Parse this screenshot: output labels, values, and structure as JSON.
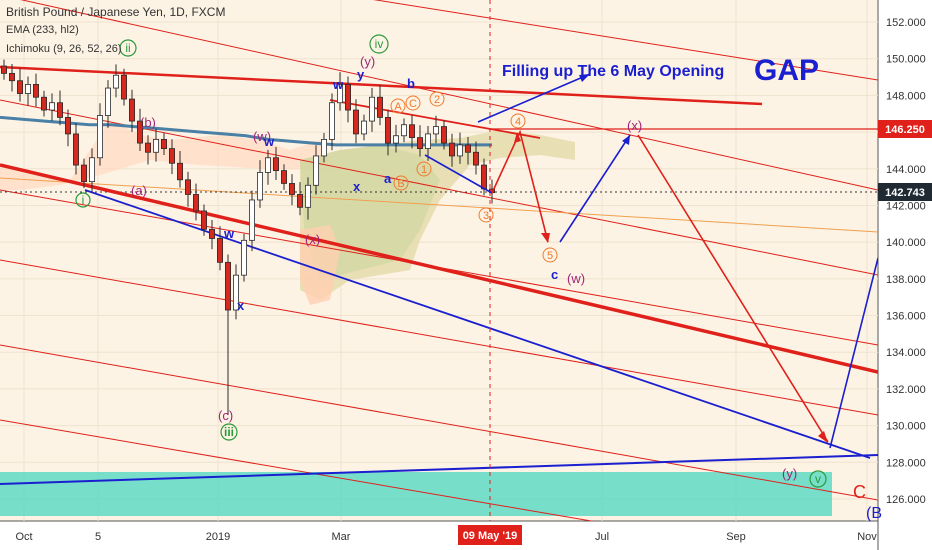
{
  "header": {
    "title": "British Pound / Japanese Yen, 1D, FXCM",
    "ema": "EMA (233, hl2)",
    "ichimoku": "Ichimoku (9, 26, 52, 26)"
  },
  "chart_data": {
    "type": "line",
    "symbol": "GBPJPY",
    "y_axis": {
      "ticks": [
        126.0,
        128.0,
        130.0,
        132.0,
        134.0,
        136.0,
        138.0,
        140.0,
        142.0,
        144.0,
        146.0,
        148.0,
        150.0,
        152.0
      ],
      "tick_labels": [
        "126.000",
        "128.000",
        "130.000",
        "132.000",
        "134.000",
        "136.000",
        "138.000",
        "140.000",
        "142.000",
        "144.000",
        "146.000",
        "148.000",
        "150.000",
        "152.000"
      ],
      "range": [
        124.8,
        153.2
      ],
      "price_tags": [
        {
          "label": "146.250",
          "value": 146.25,
          "color": "#e0201a"
        },
        {
          "label": "142.743",
          "value": 142.743,
          "color": "#1f2a33"
        }
      ]
    },
    "x_axis": {
      "tick_labels": [
        "Oct",
        "5",
        "2019",
        "Mar",
        "Jul",
        "Sep",
        "Nov"
      ],
      "highlight_label": "09 May '19"
    },
    "price_series": {
      "name": "GBPJPY",
      "values": [
        149.2,
        148.8,
        148.1,
        148.6,
        147.9,
        147.2,
        147.6,
        146.8,
        145.9,
        144.2,
        143.3,
        144.6,
        146.9,
        148.4,
        149.1,
        147.8,
        146.6,
        145.4,
        144.9,
        145.6,
        145.1,
        144.3,
        143.4,
        142.6,
        141.7,
        140.7,
        140.2,
        138.9,
        136.3,
        138.2,
        140.1,
        142.3,
        143.8,
        144.6,
        143.9,
        143.2,
        142.6,
        141.9,
        143.1,
        144.7,
        145.6,
        147.6,
        148.6,
        147.2,
        145.9,
        146.6,
        147.9,
        146.8,
        145.4,
        145.8,
        146.4,
        145.7,
        145.1,
        145.9,
        146.3,
        145.4,
        144.7,
        145.3,
        144.9,
        144.2,
        142.9,
        142.7
      ]
    },
    "ema_series": {
      "name": "EMA (233, hl2)",
      "values": [
        146.8,
        146.7,
        146.6,
        146.5,
        146.4,
        146.4,
        146.3,
        146.2,
        146.1,
        146.0,
        145.9,
        145.8,
        145.6,
        145.5,
        145.4,
        145.3,
        145.3,
        145.3,
        145.3,
        145.3,
        145.3,
        145.3,
        145.3
      ]
    },
    "title_annotation": "Filling up The 6 May Opening",
    "gap_label": "GAP",
    "wave_labels": {
      "i": "i",
      "iii": "iii",
      "iv": "iv",
      "v": "v",
      "ii": "ii",
      "a_paren": "(a)",
      "b_paren": "(b)",
      "c_paren": "(c)",
      "w_paren": "(w)",
      "x_paren": "(x)",
      "y_paren": "(y)",
      "x_paren_proj": "(x)",
      "w_paren_proj": "(w)",
      "y_paren_proj": "(y)",
      "w": "w",
      "x": "x",
      "y": "y",
      "a": "a",
      "b": "b",
      "c": "c",
      "A": "A",
      "B": "B",
      "C": "C",
      "one": "1",
      "two": "2",
      "three": "3",
      "four": "4",
      "five": "5",
      "big_C": "C",
      "big_B": "(B"
    },
    "colors": {
      "background": "#fdf3e4",
      "up_candle": "#ffffff",
      "down_candle": "#d5291f",
      "ema": "#4a7fa6",
      "red_lines": "#e0201a",
      "blue_lines": "#1a1fcf",
      "orange_label": "#f07a2d",
      "purple_label": "#a0247a",
      "green_label": "#2a9a3a",
      "zone": "#5fd9c6"
    }
  }
}
